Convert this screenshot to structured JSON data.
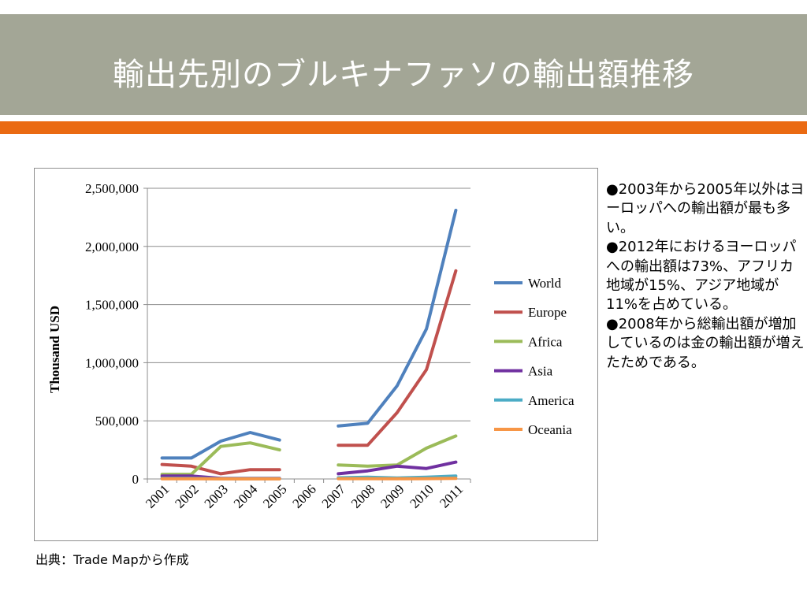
{
  "slide": {
    "title": "輸出先別のブルキナファソの輸出額推移",
    "source": "出典：Trade Mapから作成",
    "bullets": [
      "●2003年から2005年以外はヨーロッパへの輸出額が最も多い。",
      "●2012年におけるヨーロッパへの輸出額は73%、アフリカ地域が15%、アジア地域が11%を占めている。",
      "●2008年から総輸出額が増加しているのは金の輸出額が増えたためである。"
    ]
  },
  "colors": {
    "header": "#a3a696",
    "accent": "#ea6a12",
    "World": "#4f81bd",
    "Europe": "#c0504d",
    "Africa": "#9bbb59",
    "Asia": "#7030a0",
    "America": "#4bacc6",
    "Oceania": "#f79646"
  },
  "chart_data": {
    "type": "line",
    "title": "",
    "xlabel": "",
    "ylabel": "Thousand USD",
    "ylim": [
      0,
      2500000
    ],
    "yticks": [
      0,
      500000,
      1000000,
      1500000,
      2000000,
      2500000
    ],
    "ytick_labels": [
      "0",
      "500,000",
      "1,000,000",
      "1,500,000",
      "2,000,000",
      "2,500,000"
    ],
    "grid": true,
    "legend": "right",
    "categories": [
      "2001",
      "2002",
      "2003",
      "2004",
      "2005",
      "2006",
      "2007",
      "2008",
      "2009",
      "2010",
      "2011"
    ],
    "series": [
      {
        "name": "World",
        "values": [
          180000,
          180000,
          325000,
          400000,
          335000,
          null,
          455000,
          480000,
          800000,
          1290000,
          2310000
        ]
      },
      {
        "name": "Europe",
        "values": [
          125000,
          110000,
          45000,
          80000,
          80000,
          null,
          290000,
          290000,
          570000,
          940000,
          1790000
        ]
      },
      {
        "name": "Africa",
        "values": [
          40000,
          40000,
          280000,
          310000,
          250000,
          null,
          120000,
          110000,
          120000,
          265000,
          370000
        ]
      },
      {
        "name": "Asia",
        "values": [
          25000,
          25000,
          5000,
          5000,
          5000,
          null,
          45000,
          70000,
          110000,
          90000,
          145000
        ]
      },
      {
        "name": "America",
        "values": [
          5000,
          5000,
          3000,
          3000,
          3000,
          null,
          10000,
          15000,
          8000,
          15000,
          25000
        ]
      },
      {
        "name": "Oceania",
        "values": [
          2000,
          2000,
          1000,
          1000,
          1000,
          null,
          3000,
          3000,
          2000,
          3000,
          5000
        ]
      }
    ]
  }
}
